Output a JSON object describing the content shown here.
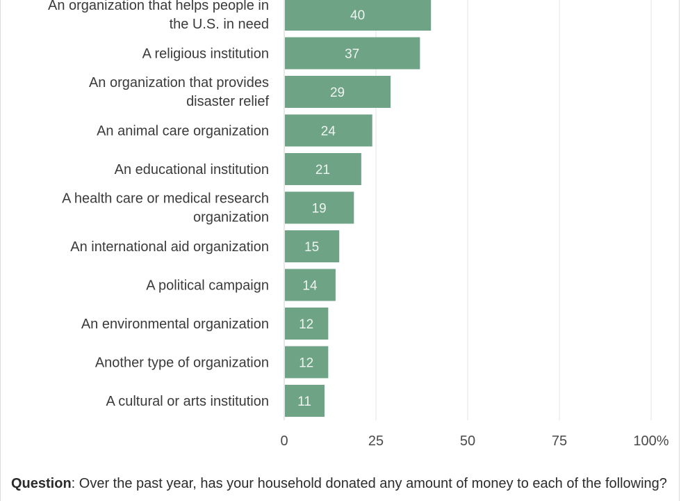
{
  "chart_data": {
    "type": "bar",
    "orientation": "horizontal",
    "categories": [
      "An organization that helps people in the U.S. in need",
      "A religious institution",
      "An organization that provides disaster relief",
      "An animal care organization",
      "An educational institution",
      "A health care or medical research organization",
      "An international aid organization",
      "A political campaign",
      "An environmental organization",
      "Another type of organization",
      "A cultural or arts institution"
    ],
    "category_lines": [
      [
        "An organization that helps people in",
        "the U.S. in need"
      ],
      [
        "A religious institution"
      ],
      [
        "An organization that provides",
        "disaster relief"
      ],
      [
        "An animal care organization"
      ],
      [
        "An educational institution"
      ],
      [
        "A health care or medical research",
        "organization"
      ],
      [
        "An international aid organization"
      ],
      [
        "A political campaign"
      ],
      [
        "An environmental organization"
      ],
      [
        "Another type of organization"
      ],
      [
        "A cultural or arts institution"
      ]
    ],
    "values": [
      40,
      37,
      29,
      24,
      21,
      19,
      15,
      14,
      12,
      12,
      11
    ],
    "xlim": [
      0,
      100
    ],
    "xticks": [
      "0",
      "25",
      "50",
      "75",
      "100%"
    ],
    "xtick_values": [
      0,
      25,
      50,
      75,
      100
    ],
    "title": "",
    "xlabel": "",
    "ylabel": "",
    "grid": true,
    "bar_color": "#6fa386",
    "grid_color": "#e3e3e3"
  },
  "footnote": {
    "label": "Question",
    "text": ": Over the past year, has your household donated any amount of money to each of the following?"
  }
}
